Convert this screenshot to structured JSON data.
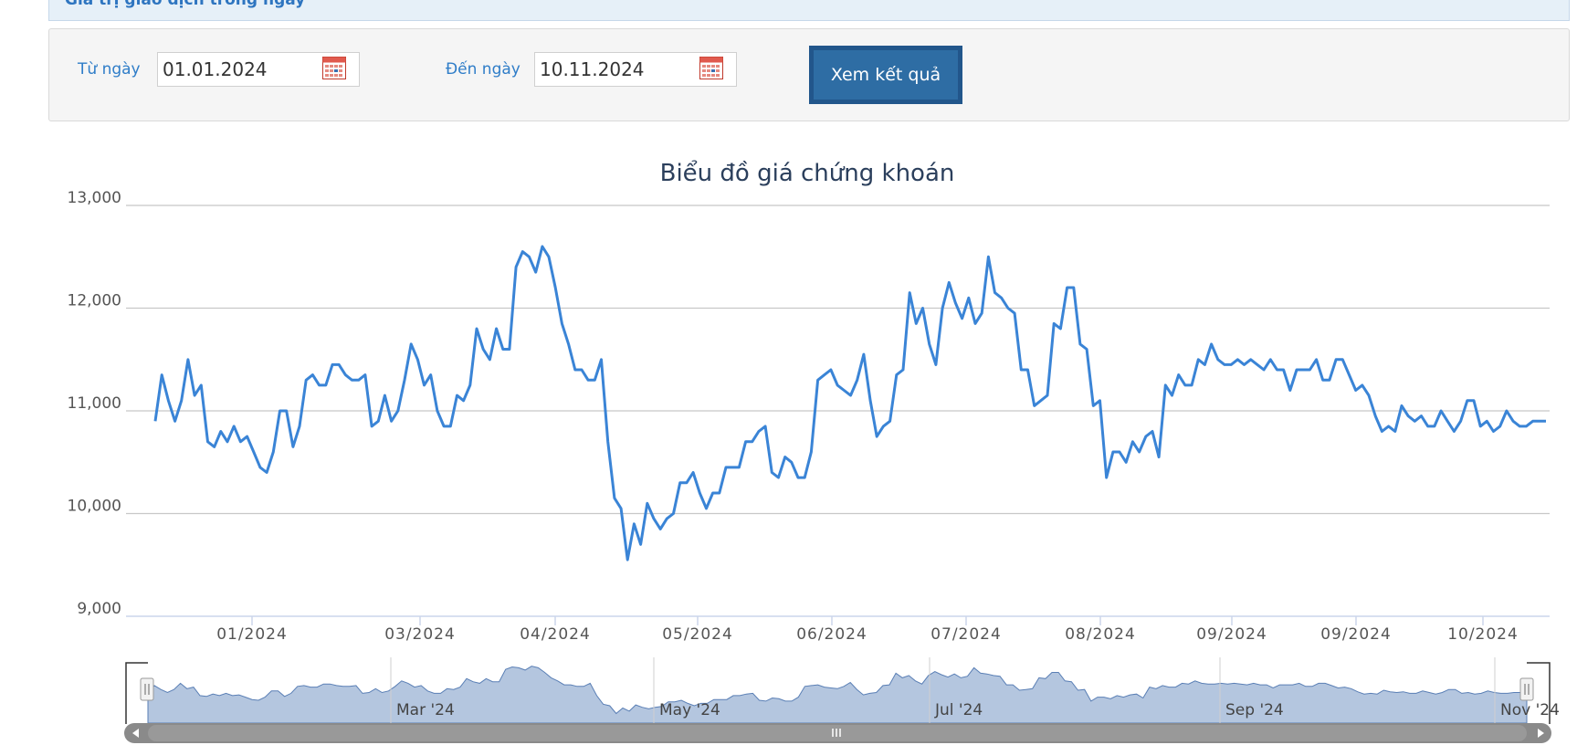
{
  "header": {
    "title": "Giá trị giao dịch trong ngày"
  },
  "filter": {
    "from_label": "Từ ngày",
    "from_value": "01.01.2024",
    "to_label": "Đến ngày",
    "to_value": "10.11.2024",
    "submit_label": "Xem kết quả"
  },
  "colors": {
    "line": "#3a84d6",
    "navigator_fill": "#b4c6df",
    "scrollbar": "#8a8a8a",
    "button": "#2e6da4"
  },
  "icons": {
    "calendar": "calendar-icon",
    "scroll_left": "arrow-left-icon",
    "scroll_right": "arrow-right-icon",
    "scroll_grip": "grip-icon",
    "handle": "navigator-handle-icon"
  },
  "chart_data": {
    "type": "line",
    "title": "Biểu đồ giá chứng khoán",
    "xlabel": "",
    "ylabel": "",
    "ylim": [
      9000,
      13000
    ],
    "yticks": [
      "13,000",
      "12,000",
      "11,000",
      "10,000",
      "9,000"
    ],
    "xtick_labels": [
      "01/2024",
      "03/2024",
      "04/2024",
      "05/2024",
      "06/2024",
      "07/2024",
      "08/2024",
      "09/2024",
      "09/2024",
      "10/2024"
    ],
    "navigator_labels": [
      "Mar '24",
      "May '24",
      "Jul '24",
      "Sep '24",
      "Nov '24"
    ],
    "grid": true,
    "legend": "none",
    "series": [
      {
        "values": [
          10900,
          11350,
          11100,
          10900,
          11100,
          11500,
          11150,
          11250,
          10700,
          10650,
          10800,
          10700,
          10850,
          10700,
          10750,
          10600,
          10450,
          10400,
          10600,
          11000,
          11000,
          10650,
          10850,
          11300,
          11350,
          11250,
          11250,
          11450,
          11450,
          11350,
          11300,
          11300,
          11350,
          10850,
          10900,
          11150,
          10900,
          11000,
          11300,
          11650,
          11500,
          11250,
          11350,
          11000,
          10850,
          10850,
          11150,
          11100,
          11250,
          11800,
          11600,
          11500,
          11800,
          11600,
          11600,
          12400,
          12550,
          12500,
          12350,
          12600,
          12500,
          12200,
          11850,
          11650,
          11400,
          11400,
          11300,
          11300,
          11500,
          10700,
          10150,
          10050,
          9550,
          9900,
          9700,
          10100,
          9950,
          9850,
          9950,
          10000,
          10300,
          10300,
          10400,
          10200,
          10050,
          10200,
          10200,
          10450,
          10450,
          10450,
          10700,
          10700,
          10800,
          10850,
          10400,
          10350,
          10550,
          10500,
          10350,
          10350,
          10600,
          11300,
          11350,
          11400,
          11250,
          11200,
          11150,
          11300,
          11550,
          11100,
          10750,
          10850,
          10900,
          11350,
          11400,
          12150,
          11850,
          12000,
          11650,
          11450,
          12000,
          12250,
          12050,
          11900,
          12100,
          11850,
          11950,
          12500,
          12150,
          12100,
          12000,
          11950,
          11400,
          11400,
          11050,
          11100,
          11150,
          11850,
          11800,
          12200,
          12200,
          11650,
          11600,
          11050,
          11100,
          10350,
          10600,
          10600,
          10500,
          10700,
          10600,
          10750,
          10800,
          10550,
          11250,
          11150,
          11350,
          11250,
          11250,
          11500,
          11450,
          11650,
          11500,
          11450,
          11450,
          11500,
          11450,
          11500,
          11450,
          11400,
          11500,
          11400,
          11400,
          11200,
          11400,
          11400,
          11400,
          11500,
          11300,
          11300,
          11500,
          11500,
          11350,
          11200,
          11250,
          11150,
          10950,
          10800,
          10850,
          10800,
          11050,
          10950,
          10900,
          10950,
          10850,
          10850,
          11000,
          10900,
          10800,
          10900,
          11100,
          11100,
          10850,
          10900,
          10800,
          10850,
          11000,
          10900,
          10850,
          10850,
          10900,
          10900,
          10900
        ]
      }
    ]
  }
}
